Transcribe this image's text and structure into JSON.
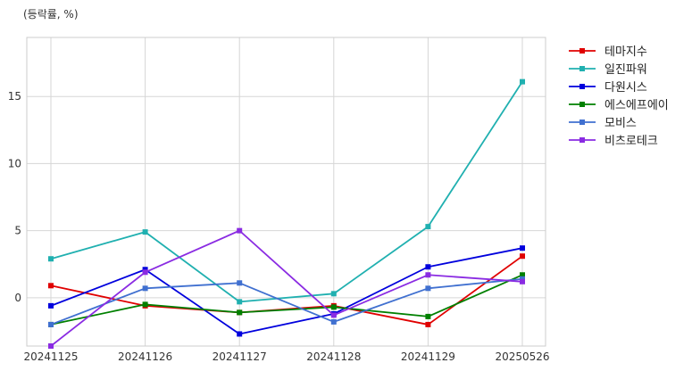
{
  "chart_data": {
    "type": "line",
    "unit_label": "(등락률, %)",
    "categories": [
      "20241125",
      "20241126",
      "20241127",
      "20241128",
      "20241129",
      "20250526"
    ],
    "ylim": [
      -3.6,
      19.4
    ],
    "yticks": [
      0,
      5,
      10,
      15
    ],
    "grid": true,
    "legend_position": "right",
    "series": [
      {
        "name": "테마지수",
        "color": "#e00000",
        "values": [
          0.9,
          -0.6,
          -1.1,
          -0.6,
          -2.0,
          3.1
        ]
      },
      {
        "name": "일진파워",
        "color": "#20b0b0",
        "values": [
          2.9,
          4.9,
          -0.3,
          0.3,
          5.3,
          16.1
        ]
      },
      {
        "name": "다원시스",
        "color": "#0000dd",
        "values": [
          -0.6,
          2.1,
          -2.7,
          -1.2,
          2.3,
          3.7
        ]
      },
      {
        "name": "에스에프에이",
        "color": "#008000",
        "values": [
          -2.0,
          -0.5,
          -1.1,
          -0.7,
          -1.4,
          1.7
        ]
      },
      {
        "name": "모비스",
        "color": "#4070d0",
        "values": [
          -2.0,
          0.7,
          1.1,
          -1.8,
          0.7,
          1.4
        ]
      },
      {
        "name": "비츠로테크",
        "color": "#8a2be2",
        "values": [
          -3.6,
          1.9,
          5.0,
          -1.3,
          1.7,
          1.2
        ]
      }
    ]
  }
}
